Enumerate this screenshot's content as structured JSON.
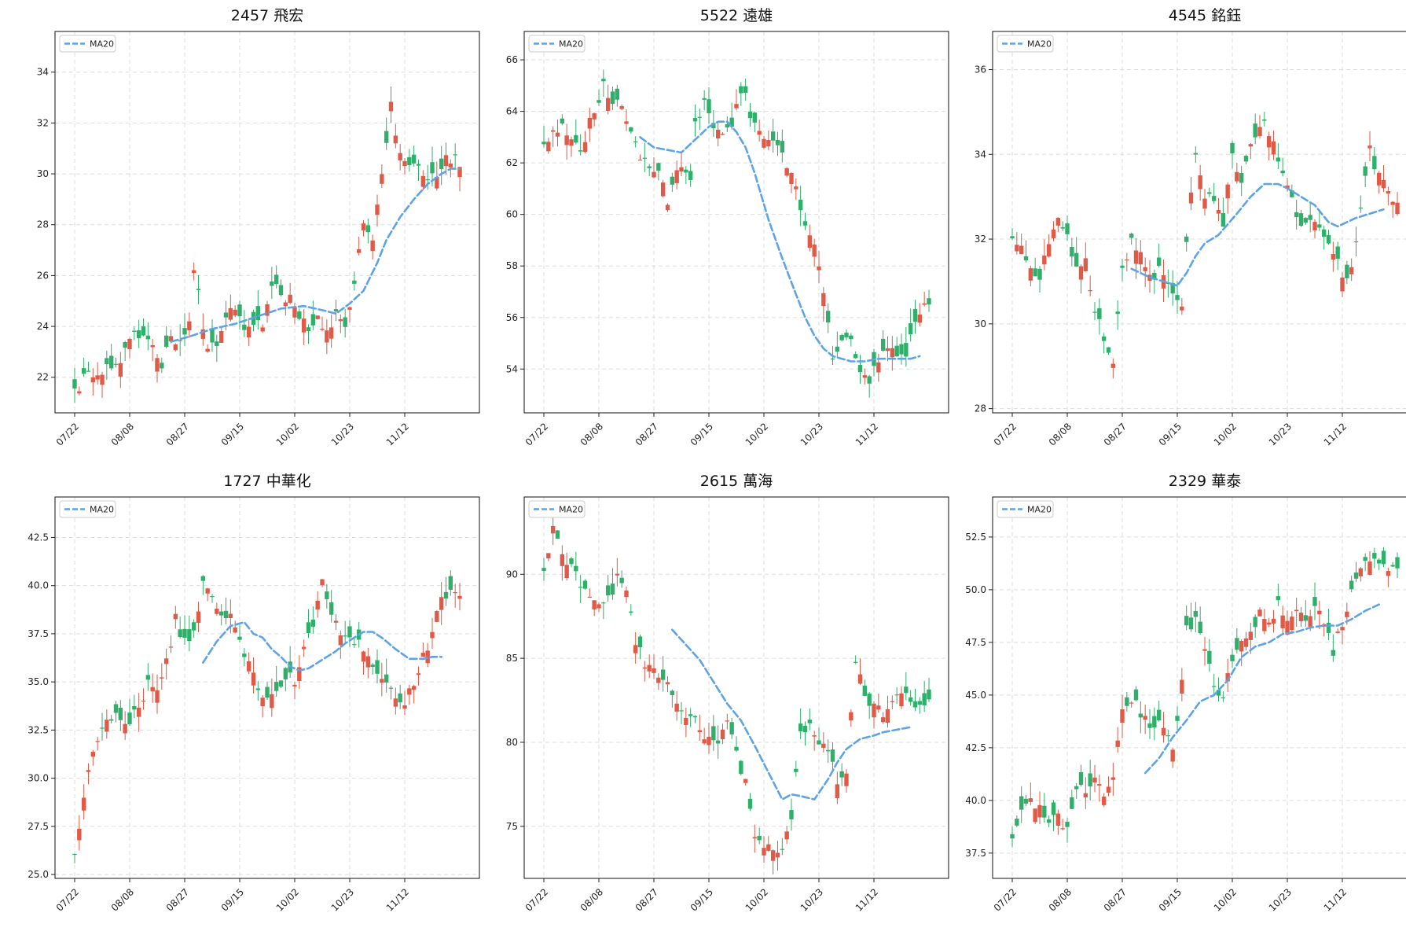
{
  "colors": {
    "up": "#e05a47",
    "down": "#2fb06a",
    "ma": "#5ea3e6",
    "grid": "#dddddd"
  },
  "legend_label": "MA20",
  "date_ticks": [
    "07/22",
    "08/08",
    "08/27",
    "09/15",
    "10/02",
    "10/23",
    "11/12"
  ],
  "chart_data": [
    {
      "type": "candlestick",
      "title": "2457 飛宏",
      "ylim": [
        20.6,
        35.6
      ],
      "yticks": [
        22,
        24,
        26,
        28,
        30,
        32,
        34
      ],
      "ytick_labels": [
        "22",
        "24",
        "26",
        "28",
        "30",
        "32",
        "34"
      ],
      "anchors": [
        [
          0,
          21.4
        ],
        [
          2,
          22.0
        ],
        [
          5,
          22.2
        ],
        [
          8,
          22.4
        ],
        [
          11,
          23.0
        ],
        [
          13,
          23.6
        ],
        [
          15,
          23.8
        ],
        [
          17,
          23.3
        ],
        [
          19,
          22.6
        ],
        [
          21,
          23.4
        ],
        [
          23,
          23.6
        ],
        [
          25,
          24.2
        ],
        [
          26,
          26.0
        ],
        [
          27,
          25.2
        ],
        [
          29,
          23.0
        ],
        [
          31,
          23.3
        ],
        [
          33,
          24.2
        ],
        [
          35,
          24.8
        ],
        [
          37,
          24.1
        ],
        [
          39,
          23.9
        ],
        [
          41,
          24.2
        ],
        [
          43,
          25.7
        ],
        [
          45,
          25.3
        ],
        [
          47,
          25.0
        ],
        [
          49,
          24.5
        ],
        [
          51,
          23.7
        ],
        [
          53,
          24.3
        ],
        [
          55,
          24.0
        ],
        [
          57,
          24.4
        ],
        [
          59,
          24.1
        ],
        [
          61,
          25.8
        ],
        [
          63,
          28.0
        ],
        [
          65,
          27.3
        ],
        [
          67,
          29.9
        ],
        [
          69,
          32.7
        ],
        [
          71,
          30.8
        ],
        [
          73,
          30.6
        ],
        [
          75,
          30.3
        ],
        [
          77,
          29.9
        ],
        [
          79,
          30.0
        ],
        [
          81,
          30.5
        ],
        [
          83,
          30.7
        ],
        [
          84,
          30.3
        ]
      ],
      "ma_x": [
        21,
        25,
        30,
        35,
        40,
        45,
        50,
        55,
        57,
        60,
        63,
        66,
        68,
        71,
        74,
        77,
        80,
        82,
        84
      ],
      "ma_y": [
        23.4,
        23.6,
        23.9,
        24.1,
        24.4,
        24.7,
        24.8,
        24.6,
        24.5,
        24.9,
        25.4,
        26.5,
        27.4,
        28.3,
        29.0,
        29.6,
        30.0,
        30.2,
        30.2
      ]
    },
    {
      "type": "candlestick",
      "title": "5522 遠雄",
      "ylim": [
        52.3,
        67.1
      ],
      "yticks": [
        54,
        56,
        58,
        60,
        62,
        64,
        66
      ],
      "ytick_labels": [
        "54",
        "56",
        "58",
        "60",
        "62",
        "64",
        "66"
      ],
      "anchors": [
        [
          0,
          62.5
        ],
        [
          2,
          63.2
        ],
        [
          4,
          63.3
        ],
        [
          6,
          63.0
        ],
        [
          8,
          62.2
        ],
        [
          10,
          63.5
        ],
        [
          12,
          64.3
        ],
        [
          13,
          65.0
        ],
        [
          15,
          64.4
        ],
        [
          17,
          64.0
        ],
        [
          19,
          63.3
        ],
        [
          21,
          62.2
        ],
        [
          23,
          61.8
        ],
        [
          25,
          61.5
        ],
        [
          27,
          60.5
        ],
        [
          29,
          61.7
        ],
        [
          31,
          61.6
        ],
        [
          32,
          61.5
        ],
        [
          33,
          63.8
        ],
        [
          35,
          64.2
        ],
        [
          37,
          63.6
        ],
        [
          39,
          62.9
        ],
        [
          41,
          63.6
        ],
        [
          43,
          64.6
        ],
        [
          44,
          64.9
        ],
        [
          45,
          63.9
        ],
        [
          47,
          63.2
        ],
        [
          49,
          63.0
        ],
        [
          51,
          62.5
        ],
        [
          53,
          61.8
        ],
        [
          55,
          61.0
        ],
        [
          57,
          59.5
        ],
        [
          59,
          58.7
        ],
        [
          61,
          57.2
        ],
        [
          63,
          54.2
        ],
        [
          65,
          55.0
        ],
        [
          67,
          55.1
        ],
        [
          69,
          53.8
        ],
        [
          71,
          53.6
        ],
        [
          73,
          54.2
        ],
        [
          75,
          54.9
        ],
        [
          77,
          54.4
        ],
        [
          79,
          54.6
        ],
        [
          81,
          55.6
        ],
        [
          82,
          56.3
        ]
      ],
      "ma_x": [
        21,
        24,
        27,
        30,
        33,
        36,
        38,
        40,
        42,
        44,
        46,
        49,
        52,
        55,
        57,
        59,
        61,
        63,
        65,
        67,
        70,
        73,
        76,
        78,
        80,
        82
      ],
      "ma_y": [
        63.0,
        62.6,
        62.5,
        62.4,
        62.9,
        63.4,
        63.6,
        63.6,
        63.2,
        62.6,
        61.6,
        59.8,
        58.3,
        56.9,
        56.0,
        55.3,
        54.8,
        54.5,
        54.4,
        54.3,
        54.3,
        54.4,
        54.4,
        54.4,
        54.4,
        54.5
      ]
    },
    {
      "type": "candlestick",
      "title": "4545 銘鈺",
      "ylim": [
        27.9,
        36.9
      ],
      "yticks": [
        28,
        30,
        32,
        34,
        36
      ],
      "ytick_labels": [
        "28",
        "30",
        "32",
        "34",
        "36"
      ],
      "anchors": [
        [
          0,
          32.1
        ],
        [
          2,
          31.7
        ],
        [
          4,
          31.2
        ],
        [
          6,
          31.1
        ],
        [
          8,
          31.9
        ],
        [
          10,
          32.6
        ],
        [
          12,
          32.0
        ],
        [
          14,
          31.4
        ],
        [
          16,
          31.4
        ],
        [
          18,
          30.4
        ],
        [
          20,
          29.6
        ],
        [
          22,
          29.0
        ],
        [
          24,
          31.2
        ],
        [
          26,
          32.1
        ],
        [
          28,
          31.6
        ],
        [
          30,
          31.0
        ],
        [
          32,
          31.4
        ],
        [
          34,
          31.0
        ],
        [
          36,
          30.5
        ],
        [
          37,
          30.3
        ],
        [
          38,
          31.8
        ],
        [
          40,
          34.1
        ],
        [
          42,
          33.1
        ],
        [
          44,
          32.9
        ],
        [
          46,
          32.4
        ],
        [
          48,
          34.0
        ],
        [
          50,
          33.4
        ],
        [
          52,
          34.3
        ],
        [
          54,
          34.8
        ],
        [
          56,
          34.5
        ],
        [
          58,
          33.8
        ],
        [
          60,
          33.4
        ],
        [
          62,
          32.4
        ],
        [
          64,
          32.5
        ],
        [
          66,
          32.3
        ],
        [
          68,
          32.2
        ],
        [
          70,
          31.6
        ],
        [
          72,
          31.2
        ],
        [
          74,
          31.2
        ],
        [
          76,
          32.8
        ],
        [
          78,
          34.1
        ],
        [
          80,
          33.5
        ],
        [
          81,
          33.4
        ],
        [
          82,
          33.0
        ]
      ],
      "ma_x": [
        26,
        30,
        33,
        36,
        38,
        40,
        42,
        45,
        49,
        52,
        55,
        58,
        60,
        63,
        66,
        69,
        71,
        73,
        75,
        78,
        81
      ],
      "ma_y": [
        31.3,
        31.1,
        31.0,
        30.9,
        31.2,
        31.6,
        31.9,
        32.1,
        32.6,
        33.0,
        33.3,
        33.3,
        33.2,
        33.0,
        32.8,
        32.4,
        32.3,
        32.4,
        32.5,
        32.6,
        32.7
      ]
    },
    {
      "type": "candlestick",
      "title": "1727 中華化",
      "ylim": [
        24.8,
        44.6
      ],
      "yticks": [
        25.0,
        27.5,
        30.0,
        32.5,
        35.0,
        37.5,
        40.0,
        42.5
      ],
      "ytick_labels": [
        "25.0",
        "27.5",
        "30.0",
        "32.5",
        "35.0",
        "37.5",
        "40.0",
        "42.5"
      ],
      "anchors": [
        [
          0,
          26.1
        ],
        [
          2,
          29.0
        ],
        [
          4,
          31.5
        ],
        [
          6,
          32.8
        ],
        [
          8,
          33.2
        ],
        [
          10,
          33.0
        ],
        [
          12,
          32.8
        ],
        [
          14,
          33.7
        ],
        [
          16,
          34.8
        ],
        [
          18,
          34.5
        ],
        [
          20,
          36.0
        ],
        [
          22,
          38.3
        ],
        [
          24,
          37.0
        ],
        [
          26,
          37.5
        ],
        [
          28,
          40.2
        ],
        [
          30,
          39.7
        ],
        [
          32,
          38.2
        ],
        [
          34,
          38.5
        ],
        [
          36,
          37.2
        ],
        [
          38,
          35.8
        ],
        [
          40,
          34.6
        ],
        [
          42,
          34.1
        ],
        [
          44,
          34.7
        ],
        [
          46,
          35.3
        ],
        [
          48,
          35.0
        ],
        [
          50,
          36.6
        ],
        [
          52,
          38.0
        ],
        [
          54,
          40.0
        ],
        [
          56,
          38.8
        ],
        [
          58,
          37.6
        ],
        [
          60,
          37.3
        ],
        [
          62,
          37.0
        ],
        [
          64,
          36.2
        ],
        [
          66,
          35.6
        ],
        [
          68,
          35.0
        ],
        [
          70,
          34.2
        ],
        [
          72,
          34.0
        ],
        [
          74,
          35.0
        ],
        [
          76,
          36.3
        ],
        [
          78,
          37.6
        ],
        [
          80,
          39.6
        ]
      ],
      "ma_x": [
        28,
        31,
        34,
        37,
        39,
        41,
        43,
        45,
        47,
        49,
        51,
        53,
        55,
        57,
        59,
        61,
        63,
        65,
        67,
        70,
        73,
        76,
        78,
        80
      ],
      "ma_y": [
        36.0,
        37.1,
        37.9,
        38.1,
        37.5,
        37.3,
        36.7,
        36.3,
        35.8,
        35.6,
        35.7,
        36.0,
        36.3,
        36.6,
        37.0,
        37.3,
        37.6,
        37.6,
        37.3,
        36.7,
        36.2,
        36.2,
        36.3,
        36.3
      ]
    },
    {
      "type": "candlestick",
      "title": "2615 萬海",
      "ylim": [
        71.9,
        94.6
      ],
      "yticks": [
        75,
        80,
        85,
        90
      ],
      "ytick_labels": [
        "75",
        "80",
        "85",
        "90"
      ],
      "anchors": [
        [
          0,
          90.3
        ],
        [
          2,
          92.6
        ],
        [
          4,
          91.3
        ],
        [
          6,
          90.4
        ],
        [
          8,
          89.3
        ],
        [
          10,
          88.6
        ],
        [
          12,
          88.3
        ],
        [
          14,
          88.6
        ],
        [
          16,
          89.7
        ],
        [
          18,
          89.2
        ],
        [
          20,
          86.0
        ],
        [
          22,
          84.6
        ],
        [
          24,
          84.2
        ],
        [
          26,
          83.7
        ],
        [
          28,
          82.8
        ],
        [
          30,
          81.6
        ],
        [
          32,
          81.6
        ],
        [
          34,
          80.7
        ],
        [
          36,
          80.0
        ],
        [
          38,
          80.3
        ],
        [
          40,
          80.9
        ],
        [
          42,
          79.4
        ],
        [
          44,
          77.6
        ],
        [
          46,
          74.6
        ],
        [
          48,
          73.8
        ],
        [
          50,
          73.6
        ],
        [
          52,
          73.7
        ],
        [
          54,
          75.6
        ],
        [
          56,
          80.6
        ],
        [
          58,
          81.0
        ],
        [
          60,
          80.0
        ],
        [
          62,
          79.4
        ],
        [
          64,
          77.7
        ],
        [
          66,
          78.3
        ],
        [
          68,
          84.6
        ],
        [
          70,
          82.8
        ],
        [
          72,
          82.0
        ],
        [
          74,
          81.8
        ],
        [
          76,
          82.4
        ],
        [
          78,
          83.3
        ],
        [
          80,
          82.4
        ]
      ],
      "ma_x": [
        28,
        31,
        34,
        37,
        40,
        43,
        46,
        49,
        52,
        54,
        56,
        59,
        62,
        64,
        66,
        69,
        72,
        74,
        76,
        78,
        80
      ],
      "ma_y": [
        86.7,
        85.8,
        84.9,
        83.6,
        82.3,
        81.3,
        79.8,
        78.2,
        76.6,
        76.9,
        76.8,
        76.6,
        77.8,
        78.8,
        79.6,
        80.2,
        80.4,
        80.6,
        80.7,
        80.8,
        80.9
      ]
    },
    {
      "type": "candlestick",
      "title": "2329 華泰",
      "ylim": [
        36.3,
        54.4
      ],
      "yticks": [
        37.5,
        40.0,
        42.5,
        45.0,
        47.5,
        50.0,
        52.5
      ],
      "ytick_labels": [
        "37.5",
        "40.0",
        "42.5",
        "45.0",
        "47.5",
        "50.0",
        "52.5"
      ],
      "anchors": [
        [
          0,
          37.9
        ],
        [
          2,
          39.5
        ],
        [
          4,
          39.8
        ],
        [
          6,
          39.6
        ],
        [
          8,
          39.2
        ],
        [
          10,
          39.4
        ],
        [
          12,
          38.5
        ],
        [
          14,
          40.4
        ],
        [
          16,
          40.6
        ],
        [
          18,
          40.9
        ],
        [
          20,
          40.1
        ],
        [
          22,
          41.3
        ],
        [
          24,
          44.5
        ],
        [
          26,
          44.9
        ],
        [
          28,
          44.2
        ],
        [
          30,
          43.5
        ],
        [
          32,
          43.8
        ],
        [
          34,
          43.0
        ],
        [
          35,
          42.6
        ],
        [
          36,
          44.0
        ],
        [
          38,
          48.0
        ],
        [
          40,
          48.7
        ],
        [
          42,
          47.0
        ],
        [
          44,
          45.5
        ],
        [
          46,
          44.8
        ],
        [
          48,
          46.8
        ],
        [
          50,
          47.3
        ],
        [
          52,
          47.7
        ],
        [
          54,
          48.8
        ],
        [
          56,
          48.4
        ],
        [
          58,
          49.3
        ],
        [
          60,
          48.3
        ],
        [
          62,
          49.2
        ],
        [
          64,
          48.6
        ],
        [
          66,
          49.3
        ],
        [
          68,
          48.5
        ],
        [
          70,
          47.0
        ],
        [
          72,
          48.5
        ],
        [
          74,
          49.9
        ],
        [
          76,
          51.2
        ],
        [
          78,
          51.4
        ],
        [
          80,
          51.2
        ]
      ],
      "ma_x": [
        29,
        32,
        35,
        38,
        41,
        44,
        47,
        50,
        53,
        56,
        59,
        62,
        65,
        68,
        71,
        74,
        77,
        80
      ],
      "ma_y": [
        41.3,
        42.0,
        43.0,
        43.8,
        44.7,
        45.0,
        45.7,
        46.8,
        47.3,
        47.5,
        47.9,
        48.0,
        48.2,
        48.3,
        48.3,
        48.6,
        49.0,
        49.3
      ]
    }
  ]
}
